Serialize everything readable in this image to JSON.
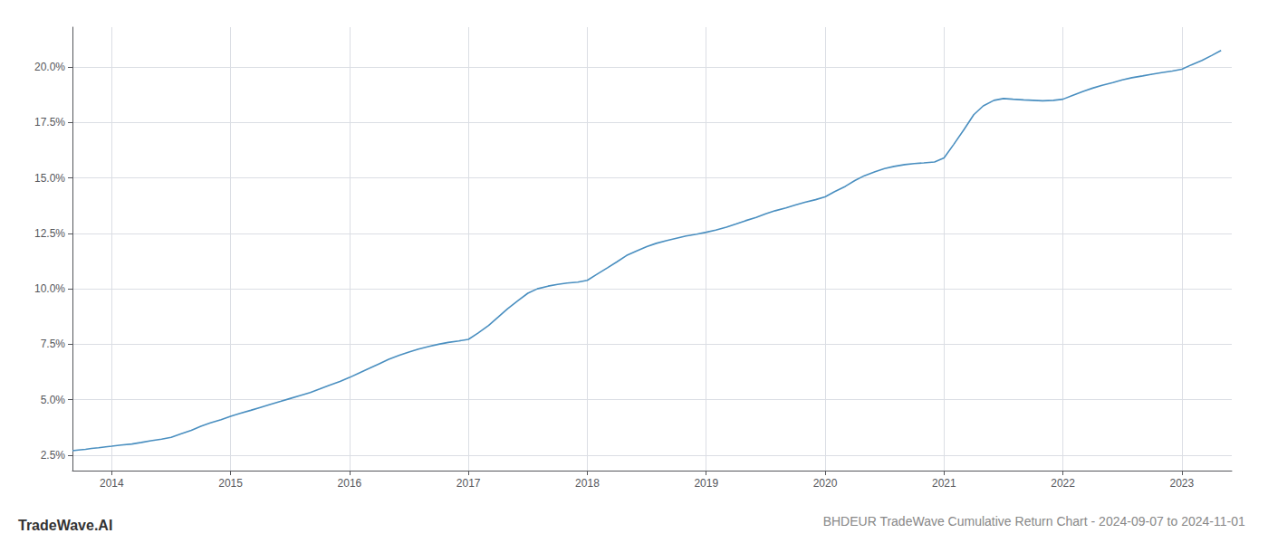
{
  "chart_data": {
    "type": "line",
    "title": "BHDEUR TradeWave Cumulative Return Chart - 2024-09-07 to 2024-11-01",
    "annotations": [
      "TradeWave.AI"
    ],
    "color": "#4a8fc0",
    "grid": true,
    "xlim": [
      2013.67,
      2023.42
    ],
    "xticks": [
      2014,
      2015,
      2016,
      2017,
      2018,
      2019,
      2020,
      2021,
      2022,
      2023
    ],
    "ylim": [
      1.8,
      21.8
    ],
    "yticks": [
      {
        "value": 2.5,
        "label": "2.5%"
      },
      {
        "value": 5.0,
        "label": "5.0%"
      },
      {
        "value": 7.5,
        "label": "7.5%"
      },
      {
        "value": 10.0,
        "label": "10.0%"
      },
      {
        "value": 12.5,
        "label": "12.5%"
      },
      {
        "value": 15.0,
        "label": "15.0%"
      },
      {
        "value": 17.5,
        "label": "17.5%"
      },
      {
        "value": 20.0,
        "label": "20.0%"
      }
    ],
    "x": [
      2013.67,
      2013.72,
      2013.78,
      2013.83,
      2013.89,
      2013.95,
      2014.0,
      2014.08,
      2014.17,
      2014.25,
      2014.33,
      2014.42,
      2014.5,
      2014.58,
      2014.67,
      2014.75,
      2014.83,
      2014.92,
      2015.0,
      2015.08,
      2015.17,
      2015.25,
      2015.33,
      2015.42,
      2015.5,
      2015.58,
      2015.67,
      2015.75,
      2015.83,
      2015.92,
      2016.0,
      2016.08,
      2016.17,
      2016.25,
      2016.33,
      2016.42,
      2016.5,
      2016.58,
      2016.67,
      2016.75,
      2016.83,
      2016.92,
      2017.0,
      2017.08,
      2017.17,
      2017.25,
      2017.33,
      2017.42,
      2017.5,
      2017.58,
      2017.67,
      2017.75,
      2017.83,
      2017.92,
      2018.0,
      2018.08,
      2018.17,
      2018.25,
      2018.33,
      2018.42,
      2018.5,
      2018.58,
      2018.67,
      2018.75,
      2018.83,
      2018.92,
      2019.0,
      2019.08,
      2019.17,
      2019.25,
      2019.33,
      2019.42,
      2019.5,
      2019.58,
      2019.67,
      2019.75,
      2019.83,
      2019.92,
      2020.0,
      2020.08,
      2020.17,
      2020.25,
      2020.33,
      2020.42,
      2020.5,
      2020.58,
      2020.67,
      2020.75,
      2020.83,
      2020.92,
      2021.0,
      2021.08,
      2021.17,
      2021.25,
      2021.33,
      2021.42,
      2021.5,
      2021.58,
      2021.67,
      2021.75,
      2021.83,
      2021.92,
      2022.0,
      2022.08,
      2022.17,
      2022.25,
      2022.33,
      2022.42,
      2022.5,
      2022.58,
      2022.67,
      2022.75,
      2022.83,
      2022.92,
      2023.0,
      2023.08,
      2023.17,
      2023.25,
      2023.33
    ],
    "values": [
      2.7,
      2.73,
      2.76,
      2.8,
      2.83,
      2.87,
      2.9,
      2.95,
      3.0,
      3.07,
      3.15,
      3.22,
      3.3,
      3.45,
      3.62,
      3.8,
      3.95,
      4.1,
      4.25,
      4.38,
      4.52,
      4.65,
      4.78,
      4.92,
      5.05,
      5.18,
      5.32,
      5.48,
      5.65,
      5.82,
      6.0,
      6.2,
      6.42,
      6.62,
      6.82,
      7.0,
      7.15,
      7.28,
      7.4,
      7.5,
      7.58,
      7.65,
      7.72,
      8.0,
      8.35,
      8.72,
      9.1,
      9.48,
      9.8,
      10.0,
      10.12,
      10.2,
      10.26,
      10.3,
      10.38,
      10.65,
      10.95,
      11.22,
      11.5,
      11.72,
      11.9,
      12.05,
      12.18,
      12.28,
      12.38,
      12.46,
      12.55,
      12.65,
      12.78,
      12.92,
      13.07,
      13.22,
      13.38,
      13.52,
      13.65,
      13.78,
      13.9,
      14.02,
      14.15,
      14.38,
      14.62,
      14.88,
      15.1,
      15.28,
      15.42,
      15.52,
      15.6,
      15.65,
      15.68,
      15.72,
      15.9,
      16.5,
      17.2,
      17.85,
      18.25,
      18.5,
      18.58,
      18.55,
      18.52,
      18.5,
      18.48,
      18.5,
      18.55,
      18.72,
      18.9,
      19.05,
      19.18,
      19.3,
      19.42,
      19.52,
      19.6,
      19.68,
      19.75,
      19.82,
      19.9,
      20.1,
      20.3,
      20.52,
      20.75
    ]
  }
}
